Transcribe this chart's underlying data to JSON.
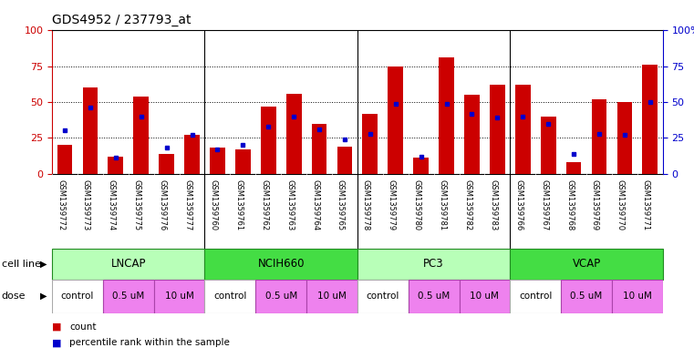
{
  "title": "GDS4952 / 237793_at",
  "samples": [
    "GSM1359772",
    "GSM1359773",
    "GSM1359774",
    "GSM1359775",
    "GSM1359776",
    "GSM1359777",
    "GSM1359760",
    "GSM1359761",
    "GSM1359762",
    "GSM1359763",
    "GSM1359764",
    "GSM1359765",
    "GSM1359778",
    "GSM1359779",
    "GSM1359780",
    "GSM1359781",
    "GSM1359782",
    "GSM1359783",
    "GSM1359766",
    "GSM1359767",
    "GSM1359768",
    "GSM1359769",
    "GSM1359770",
    "GSM1359771"
  ],
  "counts": [
    20,
    60,
    12,
    54,
    14,
    27,
    18,
    17,
    47,
    56,
    35,
    19,
    42,
    75,
    11,
    81,
    55,
    62,
    62,
    40,
    8,
    52,
    50,
    76
  ],
  "percentile_ranks": [
    30,
    46,
    11,
    40,
    18,
    27,
    17,
    20,
    33,
    40,
    31,
    24,
    28,
    49,
    12,
    49,
    42,
    39,
    40,
    35,
    14,
    28,
    27,
    50
  ],
  "cell_line_groups": [
    {
      "name": "LNCAP",
      "start": 0,
      "end": 5
    },
    {
      "name": "NCIH660",
      "start": 6,
      "end": 11
    },
    {
      "name": "PC3",
      "start": 12,
      "end": 17
    },
    {
      "name": "VCAP",
      "start": 18,
      "end": 23
    }
  ],
  "dose_groups": [
    {
      "name": "control",
      "start": 0,
      "end": 1,
      "color": "#ffffff"
    },
    {
      "name": "0.5 uM",
      "start": 2,
      "end": 3,
      "color": "#EE82EE"
    },
    {
      "name": "10 uM",
      "start": 4,
      "end": 5,
      "color": "#EE82EE"
    },
    {
      "name": "control",
      "start": 6,
      "end": 7,
      "color": "#ffffff"
    },
    {
      "name": "0.5 uM",
      "start": 8,
      "end": 9,
      "color": "#EE82EE"
    },
    {
      "name": "10 uM",
      "start": 10,
      "end": 11,
      "color": "#EE82EE"
    },
    {
      "name": "control",
      "start": 12,
      "end": 13,
      "color": "#ffffff"
    },
    {
      "name": "0.5 uM",
      "start": 14,
      "end": 15,
      "color": "#EE82EE"
    },
    {
      "name": "10 uM",
      "start": 16,
      "end": 17,
      "color": "#EE82EE"
    },
    {
      "name": "control",
      "start": 18,
      "end": 19,
      "color": "#ffffff"
    },
    {
      "name": "0.5 uM",
      "start": 20,
      "end": 21,
      "color": "#EE82EE"
    },
    {
      "name": "10 uM",
      "start": 22,
      "end": 23,
      "color": "#EE82EE"
    }
  ],
  "bar_color": "#CC0000",
  "dot_color": "#0000CC",
  "ylim": [
    0,
    100
  ],
  "yticks": [
    0,
    25,
    50,
    75,
    100
  ],
  "grid_values": [
    25,
    50,
    75
  ],
  "cell_line_color_light": "#98FB98",
  "cell_line_color_dark": "#32CD32",
  "cell_line_border": "#228B22",
  "tick_bg_color": "#DCDCDC",
  "bar_color_left": "#CC0000",
  "bar_color_right": "#0000CC",
  "bg_color": "#ffffff"
}
